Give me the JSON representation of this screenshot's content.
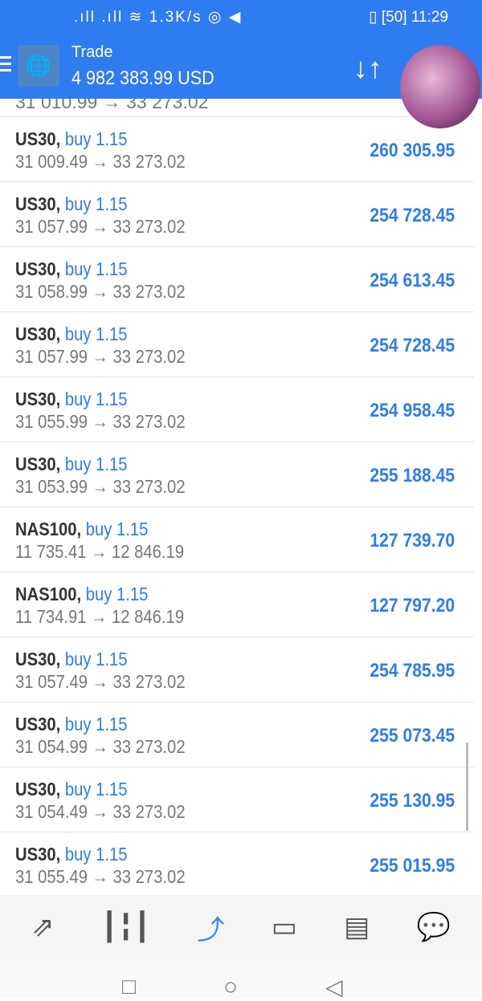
{
  "status_bar": {
    "left": ".ıll .ıll ≋ 1.3K/s ◎ ◀",
    "battery": "50",
    "time": "11:29"
  },
  "header": {
    "title": "Trade",
    "balance": "4 982 383.99 USD",
    "partial_row_prices": "31 010.99 → 33 273.02"
  },
  "positions": [
    {
      "symbol": "US30,",
      "side": "buy 1.15",
      "prices": "31 009.49 → 33 273.02",
      "profit": "260 305.95"
    },
    {
      "symbol": "US30,",
      "side": "buy 1.15",
      "prices": "31 057.99 → 33 273.02",
      "profit": "254 728.45"
    },
    {
      "symbol": "US30,",
      "side": "buy 1.15",
      "prices": "31 058.99 → 33 273.02",
      "profit": "254 613.45"
    },
    {
      "symbol": "US30,",
      "side": "buy 1.15",
      "prices": "31 057.99 → 33 273.02",
      "profit": "254 728.45"
    },
    {
      "symbol": "US30,",
      "side": "buy 1.15",
      "prices": "31 055.99 → 33 273.02",
      "profit": "254 958.45"
    },
    {
      "symbol": "US30,",
      "side": "buy 1.15",
      "prices": "31 053.99 → 33 273.02",
      "profit": "255 188.45"
    },
    {
      "symbol": "NAS100,",
      "side": "buy 1.15",
      "prices": "11 735.41 → 12 846.19",
      "profit": "127 739.70"
    },
    {
      "symbol": "NAS100,",
      "side": "buy 1.15",
      "prices": "11 734.91 → 12 846.19",
      "profit": "127 797.20"
    },
    {
      "symbol": "US30,",
      "side": "buy 1.15",
      "prices": "31 057.49 → 33 273.02",
      "profit": "254 785.95"
    },
    {
      "symbol": "US30,",
      "side": "buy 1.15",
      "prices": "31 054.99 → 33 273.02",
      "profit": "255 073.45"
    },
    {
      "symbol": "US30,",
      "side": "buy 1.15",
      "prices": "31 054.49 → 33 273.02",
      "profit": "255 130.95"
    },
    {
      "symbol": "US30,",
      "side": "buy 1.15",
      "prices": "31 055.49 → 33 273.02",
      "profit": "255 015.95"
    }
  ],
  "bottom_nav": [
    {
      "icon": "quotes-icon",
      "glyph": "⇗",
      "active": false
    },
    {
      "icon": "chart-icon",
      "glyph": "┃╏┃",
      "active": false
    },
    {
      "icon": "trade-icon",
      "glyph": "⤴",
      "active": true
    },
    {
      "icon": "history-icon",
      "glyph": "▭",
      "active": false
    },
    {
      "icon": "news-icon",
      "glyph": "▤",
      "active": false
    },
    {
      "icon": "chat-icon",
      "glyph": "💬",
      "active": false
    }
  ],
  "colors": {
    "accent": "#2f7cf0",
    "profit": "#2f7cf0"
  }
}
